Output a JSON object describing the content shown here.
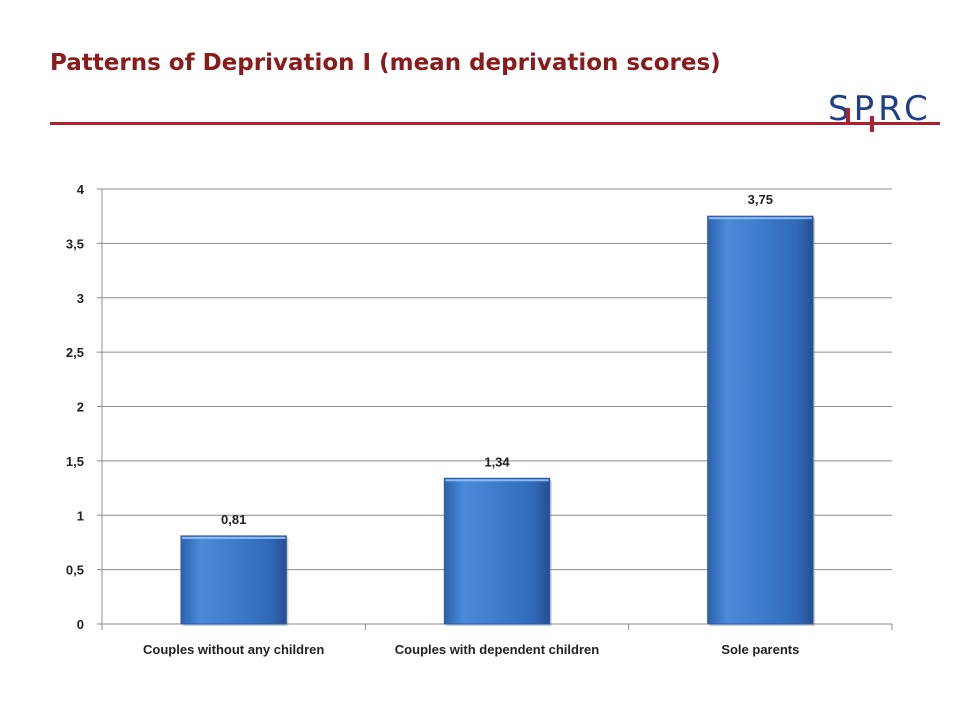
{
  "slide": {
    "title": "Patterns of Deprivation I (mean deprivation scores)",
    "logo_text": "SPRC",
    "accent_color": "#b0202c",
    "title_color": "#8b1a1a"
  },
  "chart_data": {
    "type": "bar",
    "categories": [
      "Couples without any children",
      "Couples with dependent children",
      "Sole parents"
    ],
    "values": [
      0.81,
      1.34,
      3.75
    ],
    "data_labels": [
      "0,81",
      "1,34",
      "3,75"
    ],
    "yticks": [
      0,
      0.5,
      1,
      1.5,
      2,
      2.5,
      3,
      3.5,
      4
    ],
    "ytick_labels": [
      "0",
      "0,5",
      "1",
      "1,5",
      "2",
      "2,5",
      "3",
      "3,5",
      "4"
    ],
    "ylim": [
      0,
      4
    ],
    "grid": true,
    "legend": "none",
    "bar_color": "#3a78c9"
  }
}
